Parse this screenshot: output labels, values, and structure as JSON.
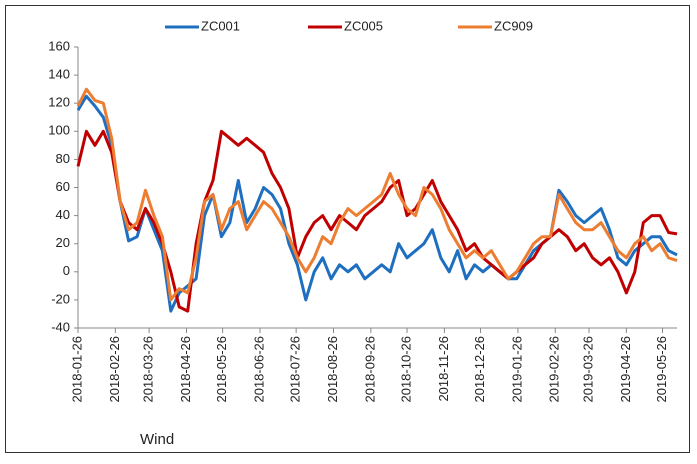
{
  "chart_data": {
    "type": "line",
    "annotation": "Wind",
    "x": [
      "2018-01-26",
      "2018-02-02",
      "2018-02-09",
      "2018-02-16",
      "2018-02-23",
      "2018-03-02",
      "2018-03-09",
      "2018-03-16",
      "2018-03-23",
      "2018-03-30",
      "2018-04-06",
      "2018-04-13",
      "2018-04-20",
      "2018-04-27",
      "2018-05-04",
      "2018-05-11",
      "2018-05-18",
      "2018-05-25",
      "2018-06-01",
      "2018-06-08",
      "2018-06-15",
      "2018-06-22",
      "2018-06-29",
      "2018-07-06",
      "2018-07-13",
      "2018-07-20",
      "2018-07-27",
      "2018-08-03",
      "2018-08-10",
      "2018-08-17",
      "2018-08-24",
      "2018-08-31",
      "2018-09-07",
      "2018-09-14",
      "2018-09-21",
      "2018-09-28",
      "2018-10-05",
      "2018-10-12",
      "2018-10-19",
      "2018-10-26",
      "2018-11-02",
      "2018-11-09",
      "2018-11-16",
      "2018-11-23",
      "2018-11-30",
      "2018-12-07",
      "2018-12-14",
      "2018-12-21",
      "2018-12-28",
      "2019-01-04",
      "2019-01-11",
      "2019-01-18",
      "2019-01-25",
      "2019-02-01",
      "2019-02-08",
      "2019-02-15",
      "2019-02-22",
      "2019-03-01",
      "2019-03-08",
      "2019-03-15",
      "2019-03-22",
      "2019-03-29",
      "2019-04-05",
      "2019-04-12",
      "2019-04-19",
      "2019-04-26",
      "2019-05-03",
      "2019-05-10",
      "2019-05-17",
      "2019-05-24",
      "2019-05-31",
      "2019-06-07"
    ],
    "series": [
      {
        "name": "ZC001",
        "color": "#1f6fc0",
        "values": [
          115,
          125,
          118,
          110,
          90,
          50,
          22,
          25,
          45,
          30,
          15,
          -28,
          -15,
          -10,
          -5,
          40,
          55,
          25,
          35,
          65,
          35,
          45,
          60,
          55,
          45,
          20,
          5,
          -20,
          0,
          10,
          -5,
          5,
          0,
          5,
          -5,
          0,
          5,
          0,
          20,
          10,
          15,
          20,
          30,
          10,
          0,
          15,
          -5,
          5,
          0,
          5,
          0,
          -5,
          -5,
          5,
          15,
          20,
          25,
          58,
          50,
          40,
          35,
          40,
          45,
          30,
          10,
          5,
          15,
          20,
          25,
          25,
          15,
          12
        ]
      },
      {
        "name": "ZC005",
        "color": "#c00000",
        "values": [
          75,
          100,
          90,
          100,
          85,
          50,
          35,
          30,
          45,
          35,
          20,
          0,
          -25,
          -28,
          20,
          50,
          65,
          100,
          95,
          90,
          95,
          90,
          85,
          70,
          60,
          45,
          10,
          25,
          35,
          40,
          30,
          40,
          35,
          30,
          40,
          45,
          50,
          60,
          65,
          40,
          45,
          55,
          65,
          50,
          40,
          30,
          15,
          20,
          10,
          5,
          0,
          -5,
          0,
          5,
          10,
          20,
          25,
          30,
          25,
          15,
          20,
          10,
          5,
          10,
          0,
          -15,
          0,
          35,
          40,
          40,
          28,
          27
        ]
      },
      {
        "name": "ZC909",
        "color": "#ed7d31",
        "values": [
          118,
          130,
          122,
          120,
          95,
          50,
          30,
          35,
          58,
          40,
          25,
          -20,
          -12,
          -15,
          10,
          50,
          55,
          30,
          45,
          50,
          30,
          40,
          50,
          45,
          35,
          25,
          10,
          0,
          10,
          25,
          20,
          35,
          45,
          40,
          45,
          50,
          55,
          70,
          55,
          45,
          40,
          60,
          55,
          45,
          30,
          20,
          10,
          15,
          10,
          15,
          5,
          -5,
          0,
          10,
          20,
          25,
          25,
          55,
          45,
          35,
          30,
          30,
          35,
          25,
          15,
          10,
          20,
          25,
          15,
          20,
          10,
          8
        ]
      }
    ],
    "xlim": [
      "2018-01-26",
      "2019-06-07"
    ],
    "xticks": [
      "2018-01-26",
      "2018-02-26",
      "2018-03-26",
      "2018-04-26",
      "2018-05-26",
      "2018-06-26",
      "2018-07-26",
      "2018-08-26",
      "2018-09-26",
      "2018-10-26",
      "2018-11-26",
      "2018-12-26",
      "2019-01-26",
      "2019-02-26",
      "2019-03-26",
      "2019-04-26",
      "2019-05-26"
    ],
    "ylim": [
      -40,
      160
    ],
    "yticks": [
      -40,
      -20,
      0,
      20,
      40,
      60,
      80,
      100,
      120,
      140,
      160
    ],
    "grid": false,
    "legend": "top"
  }
}
